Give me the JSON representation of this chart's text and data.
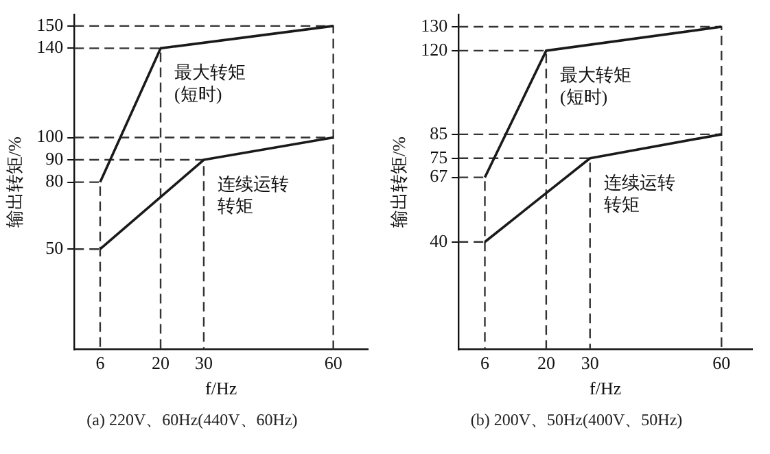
{
  "chart_data": [
    {
      "type": "line",
      "xlabel": "f/Hz",
      "ylabel": "输出转矩/%",
      "xlim": [
        0,
        68
      ],
      "ylim": [
        5,
        155
      ],
      "xticks": [
        6,
        20,
        30,
        60
      ],
      "yticks": [
        50,
        80,
        90,
        100,
        140,
        150
      ],
      "grid": false,
      "legend": false,
      "marker": "none",
      "series": [
        {
          "name": "最大转矩(短时)",
          "color": "#1a1a1a",
          "x": [
            6,
            20,
            60
          ],
          "values": [
            80,
            140,
            150
          ]
        },
        {
          "name": "连续运转转矩",
          "color": "#1a1a1a",
          "x": [
            6,
            30,
            60
          ],
          "values": [
            50,
            90,
            100
          ]
        },
        {
          "color": "#333333",
          "line_style": "dashed",
          "x": [
            0,
            60,
            60
          ],
          "values": [
            150,
            150,
            5
          ]
        },
        {
          "color": "#333333",
          "line_style": "dashed",
          "x": [
            0,
            20,
            20
          ],
          "values": [
            140,
            140,
            5
          ]
        },
        {
          "color": "#333333",
          "line_style": "dashed",
          "x": [
            0,
            60
          ],
          "values": [
            100,
            100
          ]
        },
        {
          "color": "#333333",
          "line_style": "dashed",
          "x": [
            0,
            30,
            30
          ],
          "values": [
            90,
            90,
            5
          ]
        },
        {
          "color": "#333333",
          "line_style": "dashed",
          "x": [
            0,
            6,
            6
          ],
          "values": [
            80,
            80,
            5
          ]
        },
        {
          "color": "#333333",
          "line_style": "dashed",
          "x": [
            0,
            6
          ],
          "values": [
            50,
            50
          ]
        }
      ],
      "annotations": [
        "(a) 220V、60Hz(440V、60Hz)"
      ]
    },
    {
      "type": "line",
      "xlabel": "f/Hz",
      "ylabel": "输出转矩/%",
      "xlim": [
        0,
        67
      ],
      "ylim": [
        -5,
        135
      ],
      "xticks": [
        6,
        20,
        30,
        60
      ],
      "yticks": [
        40,
        67,
        75,
        85,
        120,
        130
      ],
      "grid": false,
      "legend": false,
      "marker": "none",
      "series": [
        {
          "name": "最大转矩(短时)",
          "color": "#1a1a1a",
          "x": [
            6,
            20,
            60
          ],
          "values": [
            67,
            120,
            130
          ]
        },
        {
          "name": "连续运转转矩",
          "color": "#1a1a1a",
          "x": [
            6,
            30,
            60
          ],
          "values": [
            40,
            75,
            85
          ]
        },
        {
          "color": "#333333",
          "line_style": "dashed",
          "x": [
            0,
            60,
            60
          ],
          "values": [
            130,
            130,
            -5
          ]
        },
        {
          "color": "#333333",
          "line_style": "dashed",
          "x": [
            0,
            20,
            20
          ],
          "values": [
            120,
            120,
            -5
          ]
        },
        {
          "color": "#333333",
          "line_style": "dashed",
          "x": [
            0,
            60
          ],
          "values": [
            85,
            85
          ]
        },
        {
          "color": "#333333",
          "line_style": "dashed",
          "x": [
            0,
            30,
            30
          ],
          "values": [
            75,
            75,
            -5
          ]
        },
        {
          "color": "#333333",
          "line_style": "dashed",
          "x": [
            0,
            6,
            6
          ],
          "values": [
            67,
            67,
            -5
          ]
        },
        {
          "color": "#333333",
          "line_style": "dashed",
          "x": [
            0,
            6
          ],
          "values": [
            40,
            40
          ]
        }
      ],
      "annotations": [
        "(b) 200V、50Hz(400V、50Hz)"
      ]
    }
  ]
}
